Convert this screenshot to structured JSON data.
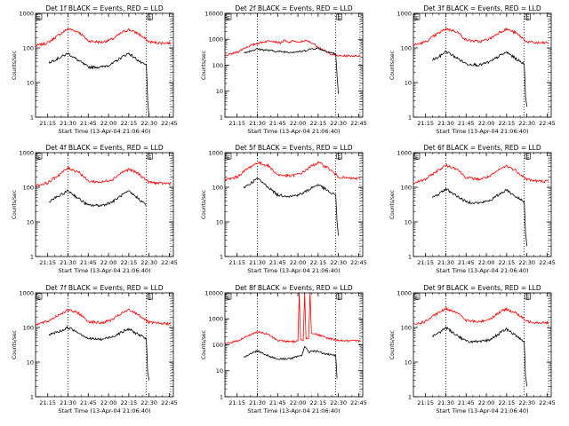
{
  "colors": {
    "events": "#000000",
    "lld": "#ff0000"
  },
  "chart_data": [
    {
      "type": "line",
      "title": "Det 1f BLACK = Events, RED = LLD",
      "ylabel": "Counts/sec",
      "xlabel": "Start Time (13-Apr-04 21:06:40)",
      "yscale": "log",
      "ylim": [
        1,
        1000
      ],
      "yticks": [
        "1",
        "10",
        "100",
        "1000"
      ],
      "xticks": [
        "21:15",
        "21:30",
        "21:45",
        "22:00",
        "22:15",
        "22:30",
        "22:45"
      ],
      "xlim": [
        "21:06",
        "22:48"
      ],
      "dotted_lines": [
        "21:30",
        "22:28",
        "22:46"
      ],
      "markers": [
        {
          "x": "21:06",
          "label": "E"
        },
        {
          "x": "22:28",
          "label": "E"
        }
      ],
      "series": [
        {
          "name": "LLD",
          "color": "red",
          "x": [
            "21:06",
            "21:15",
            "21:22",
            "21:30",
            "21:38",
            "21:45",
            "21:55",
            "22:03",
            "22:10",
            "22:15",
            "22:22",
            "22:30",
            "22:38",
            "22:46"
          ],
          "y": [
            115,
            140,
            220,
            360,
            290,
            160,
            145,
            180,
            280,
            340,
            260,
            150,
            140,
            140
          ]
        },
        {
          "name": "Events",
          "color": "black",
          "x": [
            "21:16",
            "21:20",
            "21:25",
            "21:30",
            "21:37",
            "21:45",
            "21:55",
            "22:03",
            "22:10",
            "22:15",
            "22:20",
            "22:25",
            "22:28",
            "22:29",
            "22:30"
          ],
          "y": [
            38,
            45,
            55,
            70,
            45,
            28,
            28,
            35,
            55,
            70,
            50,
            35,
            32,
            3,
            1
          ]
        }
      ]
    },
    {
      "type": "line",
      "title": "Det 2f BLACK = Events, RED = LLD",
      "ylabel": "Counts/sec",
      "xlabel": "Start Time (13-Apr-04 21:06:40)",
      "yscale": "log",
      "ylim": [
        1,
        10000
      ],
      "yticks": [
        "1",
        "10",
        "100",
        "1000",
        "10000"
      ],
      "xticks": [
        "21:15",
        "21:30",
        "21:45",
        "22:00",
        "22:15",
        "22:30",
        "22:45"
      ],
      "xlim": [
        "21:06",
        "22:48"
      ],
      "dotted_lines": [
        "21:30",
        "22:28",
        "22:46"
      ],
      "markers": [
        {
          "x": "21:06",
          "label": "E"
        },
        {
          "x": "22:28",
          "label": "E"
        }
      ],
      "series": [
        {
          "name": "LLD",
          "color": "red",
          "x": [
            "21:06",
            "21:15",
            "21:22",
            "21:30",
            "21:40",
            "21:47",
            "21:50",
            "21:53",
            "21:57",
            "22:00",
            "22:05",
            "22:10",
            "22:15",
            "22:22",
            "22:30",
            "22:38",
            "22:46"
          ],
          "y": [
            230,
            320,
            500,
            700,
            900,
            720,
            900,
            730,
            900,
            720,
            900,
            750,
            520,
            300,
            230,
            230,
            230
          ]
        },
        {
          "name": "Events",
          "color": "black",
          "x": [
            "21:20",
            "21:25",
            "21:30",
            "21:37",
            "21:45",
            "21:55",
            "22:03",
            "22:10",
            "22:15",
            "22:20",
            "22:25",
            "22:28",
            "22:29",
            "22:30"
          ],
          "y": [
            300,
            360,
            420,
            380,
            340,
            320,
            340,
            430,
            450,
            360,
            300,
            270,
            40,
            8
          ]
        }
      ]
    },
    {
      "type": "line",
      "title": "Det 3f BLACK = Events, RED = LLD",
      "ylabel": "Counts/sec",
      "xlabel": "Start Time (13-Apr-04 21:06:40)",
      "yscale": "log",
      "ylim": [
        1,
        1000
      ],
      "yticks": [
        "1",
        "10",
        "100",
        "1000"
      ],
      "xticks": [
        "21:15",
        "21:30",
        "21:45",
        "22:00",
        "22:15",
        "22:30",
        "22:45"
      ],
      "xlim": [
        "21:06",
        "22:48"
      ],
      "dotted_lines": [
        "21:30",
        "22:28",
        "22:46"
      ],
      "markers": [
        {
          "x": "21:06",
          "label": "E"
        },
        {
          "x": "22:28",
          "label": "E"
        }
      ],
      "series": [
        {
          "name": "LLD",
          "color": "red",
          "x": [
            "21:06",
            "21:15",
            "21:22",
            "21:30",
            "21:38",
            "21:45",
            "21:55",
            "22:03",
            "22:10",
            "22:15",
            "22:22",
            "22:30",
            "22:38",
            "22:46"
          ],
          "y": [
            120,
            150,
            230,
            360,
            300,
            170,
            150,
            190,
            290,
            350,
            270,
            150,
            140,
            140
          ]
        },
        {
          "name": "Events",
          "color": "black",
          "x": [
            "21:20",
            "21:25",
            "21:30",
            "21:37",
            "21:45",
            "21:55",
            "22:03",
            "22:10",
            "22:15",
            "22:20",
            "22:25",
            "22:28",
            "22:29",
            "22:30"
          ],
          "y": [
            45,
            55,
            80,
            55,
            35,
            32,
            40,
            60,
            75,
            55,
            40,
            35,
            4,
            2
          ]
        }
      ]
    },
    {
      "type": "line",
      "title": "Det 4f BLACK = Events, RED = LLD",
      "ylabel": "Counts/sec",
      "xlabel": "Start Time (13-Apr-04 21:06:40)",
      "yscale": "log",
      "ylim": [
        1,
        1000
      ],
      "yticks": [
        "1",
        "10",
        "100",
        "1000"
      ],
      "xticks": [
        "21:15",
        "21:30",
        "21:45",
        "22:00",
        "22:15",
        "22:30",
        "22:45"
      ],
      "xlim": [
        "21:06",
        "22:48"
      ],
      "dotted_lines": [
        "21:30",
        "22:28",
        "22:46"
      ],
      "markers": [
        {
          "x": "21:06",
          "label": "E"
        },
        {
          "x": "22:28",
          "label": "E"
        }
      ],
      "series": [
        {
          "name": "LLD",
          "color": "red",
          "x": [
            "21:06",
            "21:15",
            "21:22",
            "21:30",
            "21:38",
            "21:45",
            "21:55",
            "22:03",
            "22:10",
            "22:15",
            "22:22",
            "22:30",
            "22:38",
            "22:46"
          ],
          "y": [
            110,
            135,
            210,
            360,
            280,
            150,
            140,
            170,
            270,
            330,
            250,
            140,
            130,
            130
          ]
        },
        {
          "name": "Events",
          "color": "black",
          "x": [
            "21:16",
            "21:20",
            "21:25",
            "21:30",
            "21:37",
            "21:45",
            "21:55",
            "22:03",
            "22:10",
            "22:15",
            "22:20",
            "22:25",
            "22:28"
          ],
          "y": [
            38,
            48,
            60,
            80,
            50,
            30,
            30,
            38,
            60,
            75,
            55,
            38,
            30
          ]
        }
      ]
    },
    {
      "type": "line",
      "title": "Det 5f BLACK = Events, RED = LLD",
      "ylabel": "Counts/sec",
      "xlabel": "Start Time (13-Apr-04 21:06:40)",
      "yscale": "log",
      "ylim": [
        1,
        1000
      ],
      "yticks": [
        "1",
        "10",
        "100",
        "1000"
      ],
      "xticks": [
        "21:15",
        "21:30",
        "21:45",
        "22:00",
        "22:15",
        "22:30",
        "22:45"
      ],
      "xlim": [
        "21:06",
        "22:48"
      ],
      "dotted_lines": [
        "21:30",
        "22:28",
        "22:46"
      ],
      "markers": [
        {
          "x": "21:06",
          "label": "E"
        },
        {
          "x": "22:28",
          "label": "E"
        }
      ],
      "series": [
        {
          "name": "LLD",
          "color": "red",
          "x": [
            "21:06",
            "21:15",
            "21:22",
            "21:30",
            "21:38",
            "21:45",
            "21:55",
            "22:03",
            "22:10",
            "22:15",
            "22:22",
            "22:30",
            "22:38",
            "22:46"
          ],
          "y": [
            160,
            200,
            330,
            520,
            420,
            230,
            210,
            260,
            410,
            520,
            370,
            200,
            180,
            180
          ]
        },
        {
          "name": "Events",
          "color": "black",
          "x": [
            "21:20",
            "21:25",
            "21:30",
            "21:37",
            "21:45",
            "21:55",
            "22:03",
            "22:10",
            "22:15",
            "22:20",
            "22:25",
            "22:28",
            "22:29",
            "22:30"
          ],
          "y": [
            100,
            130,
            180,
            110,
            60,
            55,
            65,
            95,
            120,
            90,
            65,
            60,
            10,
            4
          ]
        }
      ]
    },
    {
      "type": "line",
      "title": "Det 6f BLACK = Events, RED = LLD",
      "ylabel": "Counts/sec",
      "xlabel": "Start Time (13-Apr-04 21:06:40)",
      "yscale": "log",
      "ylim": [
        1,
        1000
      ],
      "yticks": [
        "1",
        "10",
        "100",
        "1000"
      ],
      "xticks": [
        "21:15",
        "21:30",
        "21:45",
        "22:00",
        "22:15",
        "22:30",
        "22:45"
      ],
      "xlim": [
        "21:06",
        "22:48"
      ],
      "dotted_lines": [
        "21:30",
        "22:28",
        "22:46"
      ],
      "markers": [
        {
          "x": "21:06",
          "label": "E"
        },
        {
          "x": "22:28",
          "label": "E"
        }
      ],
      "series": [
        {
          "name": "LLD",
          "color": "red",
          "x": [
            "21:06",
            "21:15",
            "21:22",
            "21:30",
            "21:38",
            "21:45",
            "21:55",
            "22:03",
            "22:10",
            "22:15",
            "22:22",
            "22:30",
            "22:38",
            "22:46"
          ],
          "y": [
            130,
            170,
            270,
            430,
            350,
            190,
            170,
            210,
            330,
            420,
            300,
            170,
            150,
            150
          ]
        },
        {
          "name": "Events",
          "color": "black",
          "x": [
            "21:20",
            "21:25",
            "21:30",
            "21:37",
            "21:45",
            "21:55",
            "22:03",
            "22:10",
            "22:15",
            "22:20",
            "22:25",
            "22:28",
            "22:29",
            "22:30"
          ],
          "y": [
            50,
            65,
            90,
            60,
            38,
            35,
            42,
            65,
            85,
            60,
            45,
            40,
            5,
            2
          ]
        }
      ]
    },
    {
      "type": "line",
      "title": "Det 7f BLACK = Events, RED = LLD",
      "ylabel": "Counts/sec",
      "xlabel": "Start Time (13-Apr-04 21:06:40)",
      "yscale": "log",
      "ylim": [
        1,
        1000
      ],
      "yticks": [
        "1",
        "10",
        "100",
        "1000"
      ],
      "xticks": [
        "21:15",
        "21:30",
        "21:45",
        "22:00",
        "22:15",
        "22:30",
        "22:45"
      ],
      "xlim": [
        "21:06",
        "22:48"
      ],
      "dotted_lines": [
        "21:30",
        "22:28",
        "22:46"
      ],
      "markers": [
        {
          "x": "21:06",
          "label": "E"
        },
        {
          "x": "22:28",
          "label": "E"
        }
      ],
      "series": [
        {
          "name": "LLD",
          "color": "red",
          "x": [
            "21:06",
            "21:15",
            "21:22",
            "21:30",
            "21:38",
            "21:45",
            "21:55",
            "22:03",
            "22:10",
            "22:15",
            "22:22",
            "22:30",
            "22:38",
            "22:46"
          ],
          "y": [
            120,
            150,
            220,
            320,
            260,
            150,
            135,
            170,
            260,
            320,
            240,
            140,
            130,
            130
          ]
        },
        {
          "name": "Events",
          "color": "black",
          "x": [
            "21:16",
            "21:20",
            "21:25",
            "21:30",
            "21:37",
            "21:45",
            "21:55",
            "22:03",
            "22:10",
            "22:15",
            "22:20",
            "22:25",
            "22:28",
            "22:29",
            "22:30"
          ],
          "y": [
            60,
            70,
            80,
            100,
            75,
            48,
            45,
            55,
            75,
            90,
            70,
            55,
            45,
            5,
            3
          ]
        }
      ]
    },
    {
      "type": "line",
      "title": "Det 8f BLACK = Events, RED = LLD",
      "ylabel": "Counts/sec",
      "xlabel": "Start Time (13-Apr-04 21:06:40)",
      "yscale": "log",
      "ylim": [
        1,
        10000
      ],
      "yticks": [
        "1",
        "10",
        "100",
        "1000",
        "10000"
      ],
      "xticks": [
        "21:15",
        "21:30",
        "21:45",
        "22:00",
        "22:15",
        "22:30",
        "22:45"
      ],
      "xlim": [
        "21:06",
        "22:48"
      ],
      "dotted_lines": [
        "21:30",
        "22:28",
        "22:46"
      ],
      "markers": [
        {
          "x": "21:06",
          "label": "E"
        },
        {
          "x": "22:28",
          "label": "E"
        }
      ],
      "series": [
        {
          "name": "LLD",
          "color": "red",
          "x": [
            "21:06",
            "21:15",
            "21:22",
            "21:30",
            "21:38",
            "21:45",
            "21:55",
            "22:00",
            "22:01",
            "22:02",
            "22:04",
            "22:05",
            "22:06",
            "22:08",
            "22:09",
            "22:10",
            "22:15",
            "22:22",
            "22:30",
            "22:38",
            "22:46"
          ],
          "y": [
            110,
            140,
            210,
            320,
            250,
            150,
            130,
            140,
            10000,
            150,
            150,
            10000,
            180,
            180,
            10000,
            300,
            240,
            180,
            150,
            140,
            140
          ]
        },
        {
          "name": "Events",
          "color": "black",
          "x": [
            "21:20",
            "21:25",
            "21:30",
            "21:37",
            "21:45",
            "21:55",
            "22:00",
            "22:03",
            "22:05",
            "22:08",
            "22:10",
            "22:15",
            "22:20",
            "22:25",
            "22:28",
            "22:29"
          ],
          "y": [
            35,
            45,
            60,
            40,
            28,
            30,
            35,
            40,
            90,
            50,
            60,
            55,
            45,
            40,
            38,
            5
          ]
        }
      ]
    },
    {
      "type": "line",
      "title": "Det 9f BLACK = Events, RED = LLD",
      "ylabel": "Counts/sec",
      "xlabel": "Start Time (13-Apr-04 21:06:40)",
      "yscale": "log",
      "ylim": [
        1,
        1000
      ],
      "yticks": [
        "1",
        "10",
        "100",
        "1000"
      ],
      "xticks": [
        "21:15",
        "21:30",
        "21:45",
        "22:00",
        "22:15",
        "22:30",
        "22:45"
      ],
      "xlim": [
        "21:06",
        "22:48"
      ],
      "dotted_lines": [
        "21:30",
        "22:28",
        "22:46"
      ],
      "markers": [
        {
          "x": "21:06",
          "label": "E"
        },
        {
          "x": "22:28",
          "label": "E"
        }
      ],
      "series": [
        {
          "name": "LLD",
          "color": "red",
          "x": [
            "21:06",
            "21:15",
            "21:22",
            "21:30",
            "21:38",
            "21:45",
            "21:55",
            "22:03",
            "22:10",
            "22:15",
            "22:22",
            "22:30",
            "22:38",
            "22:46"
          ],
          "y": [
            120,
            150,
            230,
            350,
            280,
            160,
            145,
            180,
            280,
            340,
            260,
            150,
            140,
            140
          ]
        },
        {
          "name": "Events",
          "color": "black",
          "x": [
            "21:20",
            "21:25",
            "21:30",
            "21:37",
            "21:45",
            "21:55",
            "22:03",
            "22:10",
            "22:15",
            "22:20",
            "22:25",
            "22:28",
            "22:29",
            "22:30"
          ],
          "y": [
            55,
            70,
            100,
            65,
            40,
            38,
            45,
            70,
            90,
            65,
            48,
            40,
            4,
            2
          ]
        }
      ]
    }
  ]
}
